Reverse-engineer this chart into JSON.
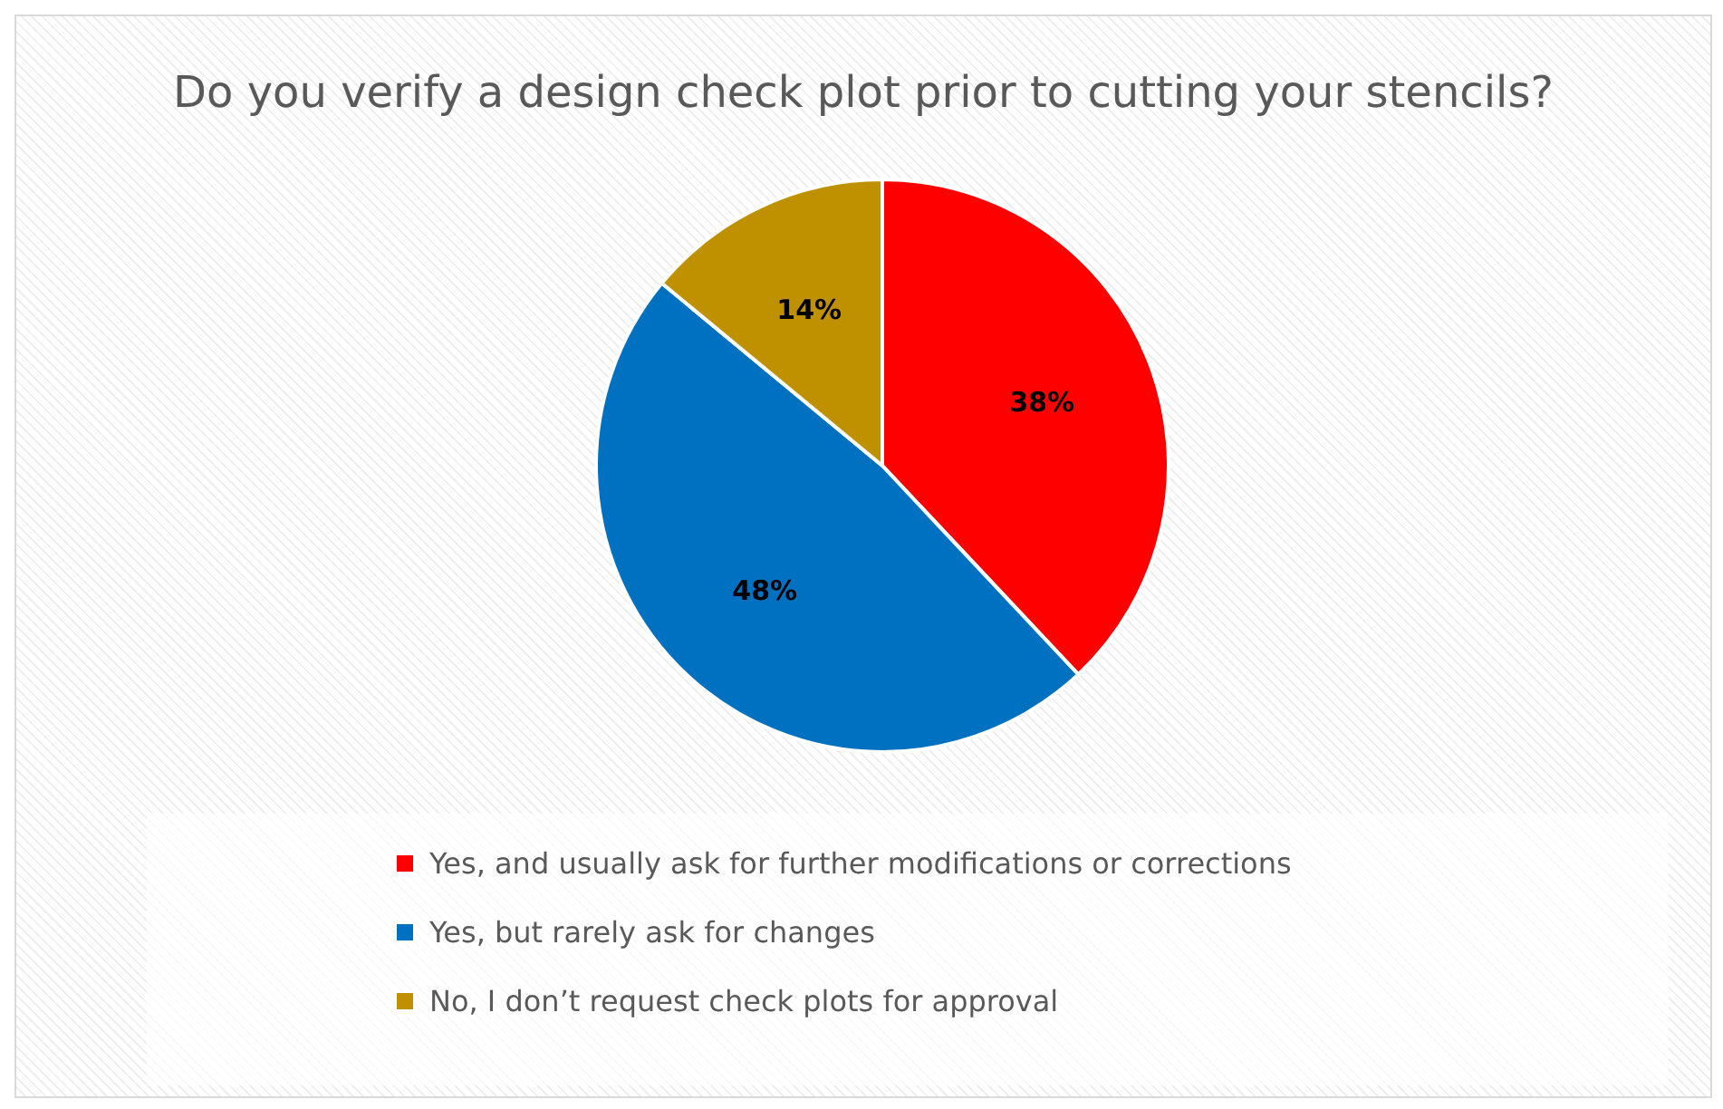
{
  "chart_data": {
    "type": "pie",
    "title": "Do you verify a design check plot prior to cutting your stencils?",
    "categories": [
      "Yes, and usually ask for further modifications or corrections",
      "Yes, but rarely ask for changes",
      "No, I don’t request check plots for approval"
    ],
    "values": [
      38,
      48,
      14
    ],
    "value_labels": [
      "38%",
      "48%",
      "14%"
    ],
    "colors": [
      "#ff0000",
      "#0070c0",
      "#bf9000"
    ],
    "legend": "bottom"
  }
}
